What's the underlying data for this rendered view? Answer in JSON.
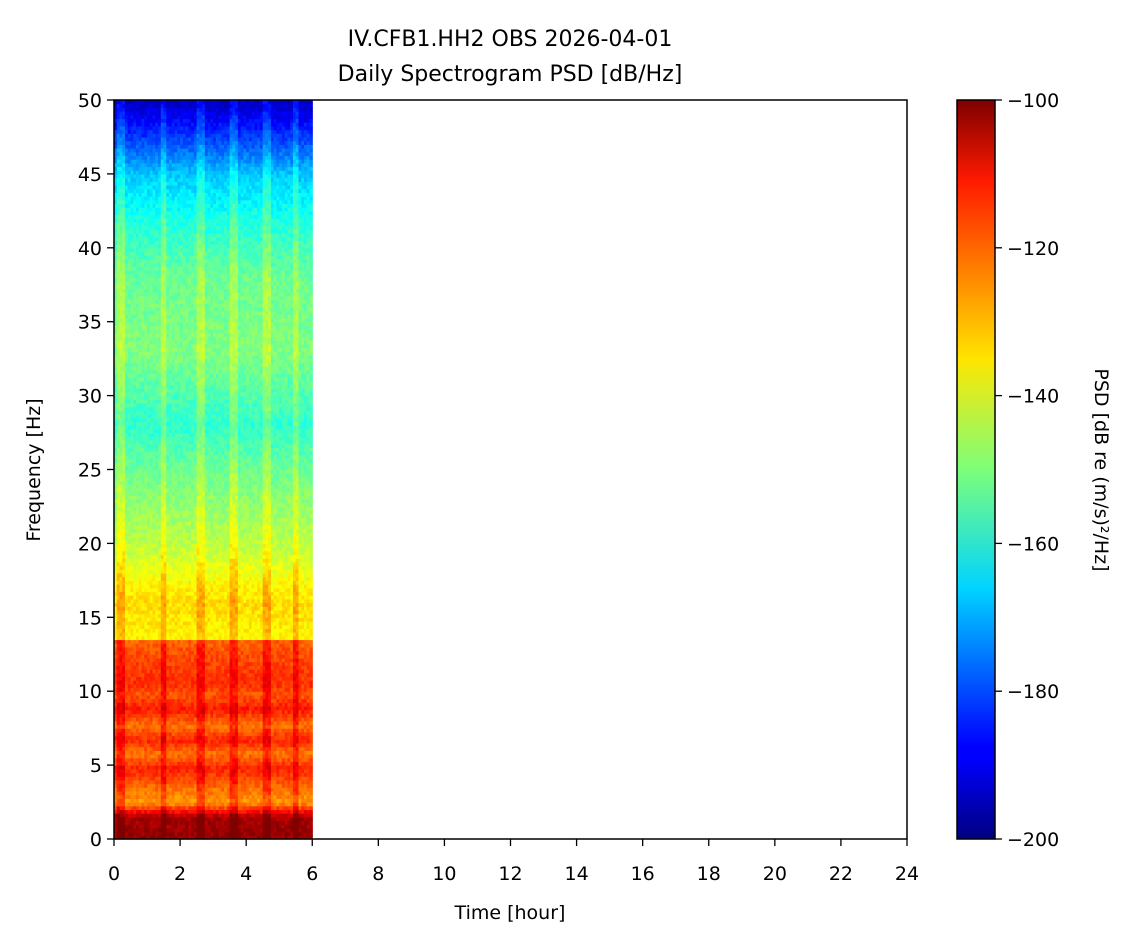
{
  "chart_data": {
    "type": "heatmap",
    "title": "IV.CFB1.HH2 OBS 2026-04-01",
    "subtitle": "Daily Spectrogram PSD [dB/Hz]",
    "xlabel": "Time [hour]",
    "ylabel": "Frequency [Hz]",
    "xlim": [
      0,
      24
    ],
    "ylim": [
      0,
      50
    ],
    "xticks": [
      0,
      2,
      4,
      6,
      8,
      10,
      12,
      14,
      16,
      18,
      20,
      22,
      24
    ],
    "yticks": [
      0,
      5,
      10,
      15,
      20,
      25,
      30,
      35,
      40,
      45,
      50
    ],
    "data_time_range": [
      0,
      6
    ],
    "colormap": "jet",
    "colorbar": {
      "label": "PSD [dB re (m/s)²/Hz]",
      "range": [
        -200,
        -100
      ],
      "ticks": [
        -100,
        -120,
        -140,
        -160,
        -180,
        -200
      ],
      "tick_labels": [
        "−100",
        "−120",
        "−140",
        "−160",
        "−180",
        "−200"
      ]
    },
    "psd_profile": [
      {
        "freq": 0,
        "psd": -102
      },
      {
        "freq": 1.5,
        "psd": -104
      },
      {
        "freq": 2.5,
        "psd": -128
      },
      {
        "freq": 4.8,
        "psd": -116
      },
      {
        "freq": 5.8,
        "psd": -124
      },
      {
        "freq": 6.7,
        "psd": -116
      },
      {
        "freq": 7.7,
        "psd": -124
      },
      {
        "freq": 8.8,
        "psd": -115
      },
      {
        "freq": 9.8,
        "psd": -121
      },
      {
        "freq": 10.5,
        "psd": -117
      },
      {
        "freq": 12.5,
        "psd": -120
      },
      {
        "freq": 13.4,
        "psd": -122
      },
      {
        "freq": 13.5,
        "psd": -137
      },
      {
        "freq": 16,
        "psd": -134
      },
      {
        "freq": 20,
        "psd": -144
      },
      {
        "freq": 25,
        "psd": -152
      },
      {
        "freq": 28,
        "psd": -158
      },
      {
        "freq": 33,
        "psd": -150
      },
      {
        "freq": 38,
        "psd": -152
      },
      {
        "freq": 42,
        "psd": -160
      },
      {
        "freq": 45,
        "psd": -168
      },
      {
        "freq": 47.5,
        "psd": -182
      },
      {
        "freq": 50,
        "psd": -194
      }
    ],
    "bright_columns_hour": [
      0.2,
      1.5,
      2.6,
      3.6,
      4.6,
      5.5
    ]
  }
}
